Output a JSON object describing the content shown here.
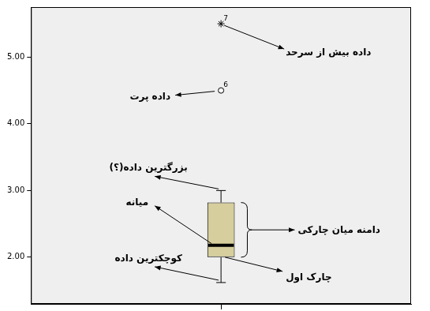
{
  "chart_data": {
    "type": "boxplot",
    "ylim": [
      1.3,
      5.75
    ],
    "yticks": [
      {
        "value": 2,
        "label": "2.00"
      },
      {
        "value": 3,
        "label": "3.00"
      },
      {
        "value": 4,
        "label": "4.00"
      },
      {
        "value": 5,
        "label": "5.00"
      }
    ],
    "tick_labels": "y",
    "grid": false,
    "color": "#d6ce9c",
    "box": {
      "min": 1.62,
      "q1": 2.0,
      "median": 2.18,
      "q3": 2.82,
      "max": 3.0
    },
    "outliers": [
      {
        "value": 4.5,
        "label": "6",
        "marker": "circle"
      }
    ],
    "extremes": [
      {
        "value": 5.5,
        "label": "7",
        "marker": "star"
      }
    ],
    "annotations": {
      "extreme": "داده بیش از سرحد",
      "outlier": "داده پرت",
      "max": "بزرگترین داده(؟)",
      "median": "میانه",
      "iqr": "دامنه میان چارکی",
      "q1": "چارک اول",
      "min": "کوچکترین داده"
    }
  }
}
